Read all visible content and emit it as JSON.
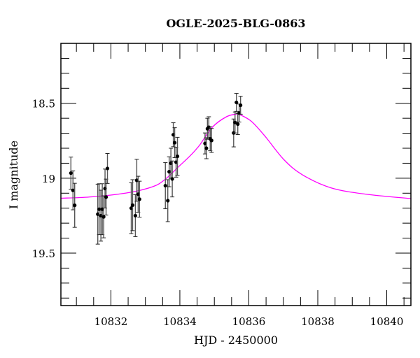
{
  "chart_data": {
    "type": "scatter",
    "title": "OGLE-2025-BLG-0863",
    "xlabel": "HJD - 2450000",
    "ylabel": "I magnitude",
    "xlim": [
      10830.55,
      10840.7
    ],
    "ylim": [
      19.85,
      18.1
    ],
    "y_inverted": true,
    "grid": false,
    "x_ticks": [
      10832,
      10834,
      10836,
      10838,
      10840
    ],
    "x_tick_labels": [
      "10832",
      "10834",
      "10836",
      "10838",
      "10840"
    ],
    "x_minor_step": 0.5,
    "y_ticks": [
      18.5,
      19,
      19.5
    ],
    "y_tick_labels": [
      "18.5",
      "19",
      "19.5"
    ],
    "y_minor_step": 0.1,
    "colors": {
      "data": "#000000",
      "errorbar": "#555555",
      "model": "#ff00ff"
    },
    "series": [
      {
        "kind": "points-with-errorbars",
        "x": [
          10830.84,
          10830.9,
          10830.95,
          10831.62,
          10831.66,
          10831.71,
          10831.75,
          10831.79,
          10831.83,
          10831.86,
          10831.9,
          10832.59,
          10832.63,
          10832.71,
          10832.75,
          10832.79,
          10832.83,
          10833.58,
          10833.65,
          10833.69,
          10833.74,
          10833.78,
          10833.81,
          10833.85,
          10833.89,
          10833.93,
          10834.73,
          10834.77,
          10834.8,
          10834.84,
          10834.88,
          10834.92,
          10835.56,
          10835.6,
          10835.64,
          10835.68,
          10835.72,
          10835.76
        ],
        "y": [
          18.966,
          19.081,
          19.181,
          19.24,
          19.207,
          19.25,
          19.207,
          19.258,
          19.069,
          19.126,
          18.935,
          19.2,
          19.18,
          19.25,
          19.014,
          19.107,
          19.14,
          19.05,
          19.15,
          18.957,
          18.9,
          19.005,
          18.71,
          18.763,
          18.893,
          18.854,
          18.768,
          18.8,
          18.67,
          18.66,
          18.737,
          18.748,
          18.698,
          18.628,
          18.494,
          18.639,
          18.565,
          18.513
        ],
        "err": [
          0.107,
          0.13,
          0.147,
          0.2,
          0.17,
          0.17,
          0.17,
          0.14,
          0.13,
          0.12,
          0.1,
          0.17,
          0.17,
          0.14,
          0.14,
          0.12,
          0.12,
          0.154,
          0.14,
          0.1,
          0.1,
          0.12,
          0.08,
          0.1,
          0.1,
          0.127,
          0.07,
          0.07,
          0.07,
          0.07,
          0.08,
          0.08,
          0.093,
          0.07,
          0.06,
          0.07,
          0.06,
          0.06
        ]
      },
      {
        "kind": "model-line",
        "x": [
          10830.55,
          10831.52,
          10832.54,
          10833.22,
          10833.56,
          10833.96,
          10834.3,
          10834.57,
          10834.94,
          10835.35,
          10835.64,
          10835.73,
          10836.07,
          10836.47,
          10837.02,
          10837.56,
          10838.38,
          10839.4,
          10840.7
        ],
        "y": [
          19.134,
          19.123,
          19.095,
          19.056,
          19.01,
          18.924,
          18.85,
          18.78,
          18.66,
          18.59,
          18.572,
          18.575,
          18.62,
          18.72,
          18.877,
          18.978,
          19.064,
          19.107,
          19.136
        ]
      }
    ]
  }
}
